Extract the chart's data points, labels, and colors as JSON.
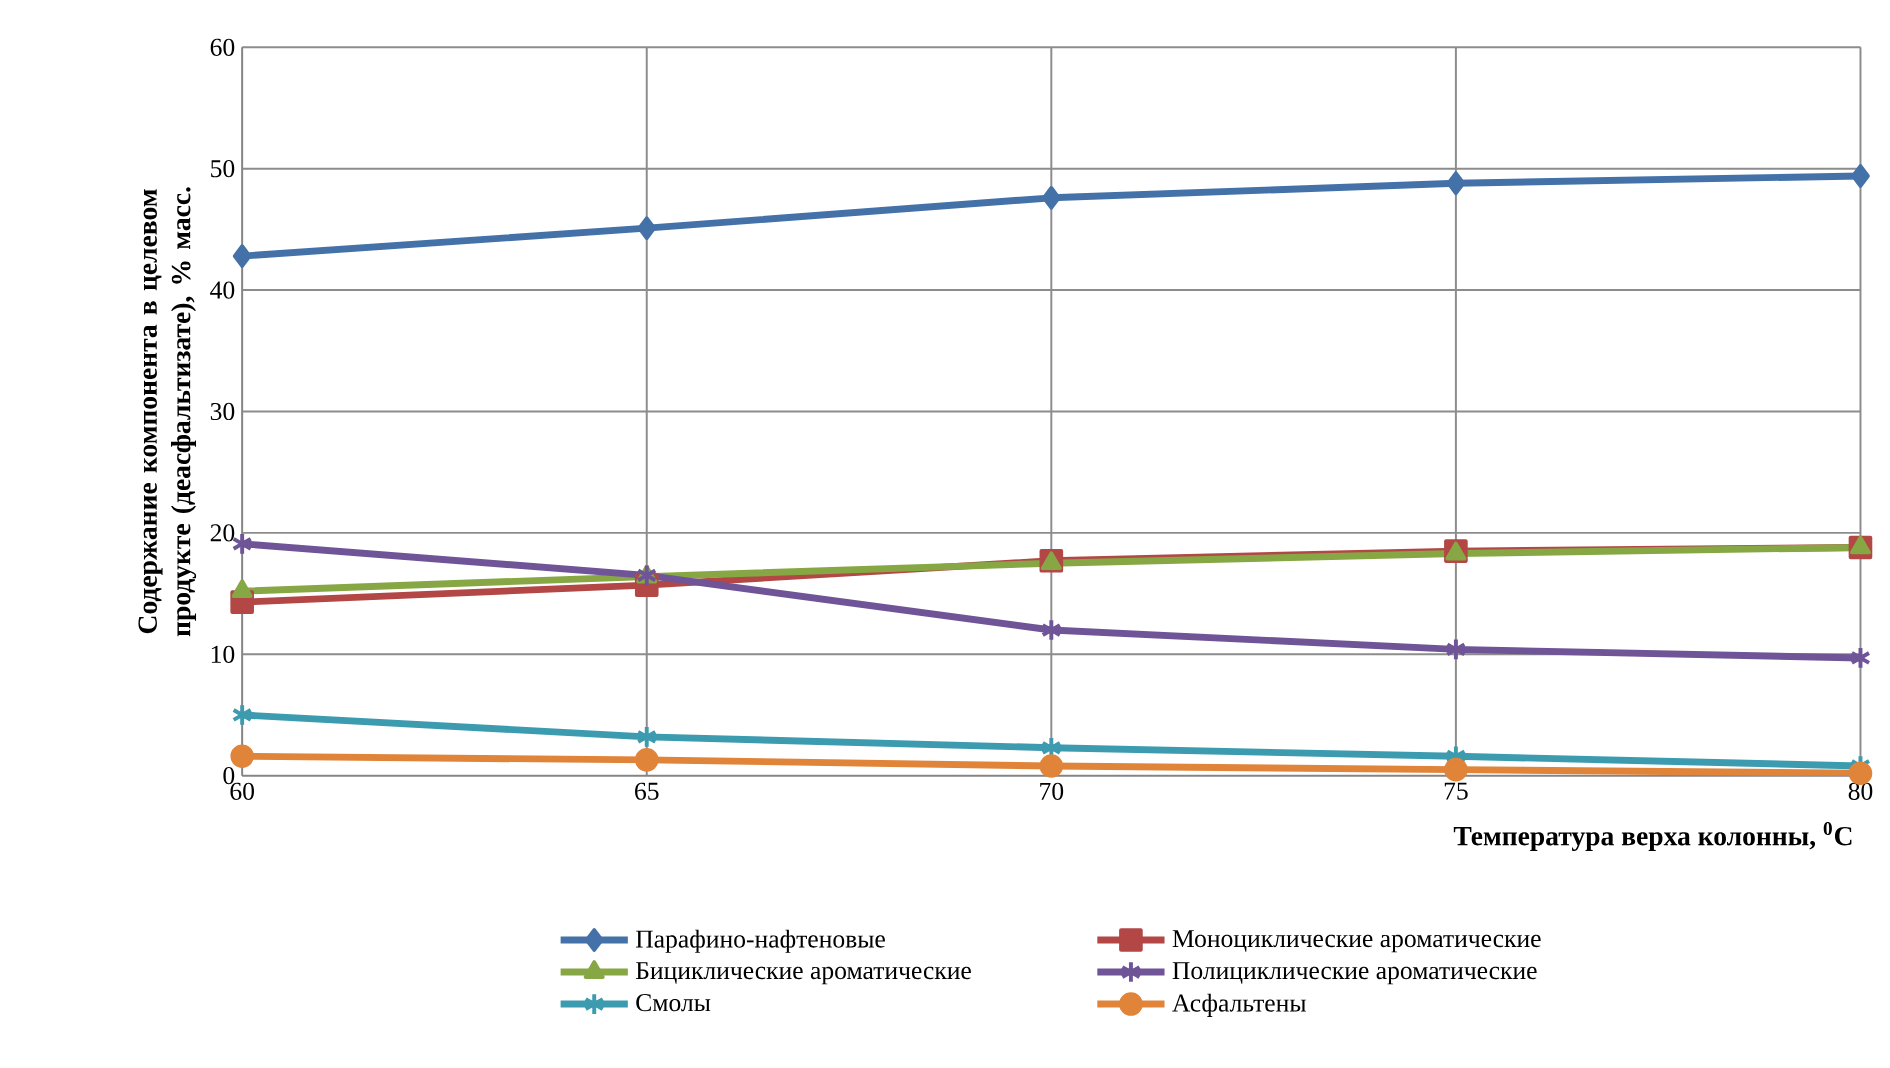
{
  "chart_data": {
    "type": "line",
    "xlabel": "Температура верха колонны, $^{0}$C",
    "ylabel": "Содержание компонента в целевом продукте (деасфальтизате), % масс.",
    "x": [
      60,
      65,
      70,
      75,
      80
    ],
    "xlim": [
      60,
      80
    ],
    "xticks": [
      60,
      65,
      70,
      75,
      80
    ],
    "ylim": [
      0,
      60
    ],
    "yticks": [
      0,
      10,
      20,
      30,
      40,
      50,
      60
    ],
    "grid": true,
    "legend": "bottom",
    "series": [
      {
        "name": "Парафино-нафтеновые",
        "color": "#4472a8",
        "marker": "diamond",
        "values": [
          42.8,
          45.1,
          47.6,
          48.8,
          49.4
        ]
      },
      {
        "name": "Моноциклические ароматические",
        "color": "#b24745",
        "marker": "square",
        "values": [
          14.3,
          15.7,
          17.7,
          18.5,
          18.8
        ]
      },
      {
        "name": "Бициклические ароматические",
        "color": "#86a744",
        "marker": "triangle",
        "values": [
          15.2,
          16.4,
          17.5,
          18.3,
          18.8
        ]
      },
      {
        "name": "Полициклические ароматические",
        "color": "#6f5597",
        "marker": "cross",
        "values": [
          19.1,
          16.5,
          12.0,
          10.4,
          9.7
        ]
      },
      {
        "name": "Смолы",
        "color": "#3d9bb0",
        "marker": "cross",
        "values": [
          5.0,
          3.2,
          2.3,
          1.6,
          0.8
        ]
      },
      {
        "name": "Асфальтены",
        "color": "#e0843a",
        "marker": "circle",
        "values": [
          1.6,
          1.3,
          0.8,
          0.5,
          0.2
        ]
      }
    ]
  }
}
